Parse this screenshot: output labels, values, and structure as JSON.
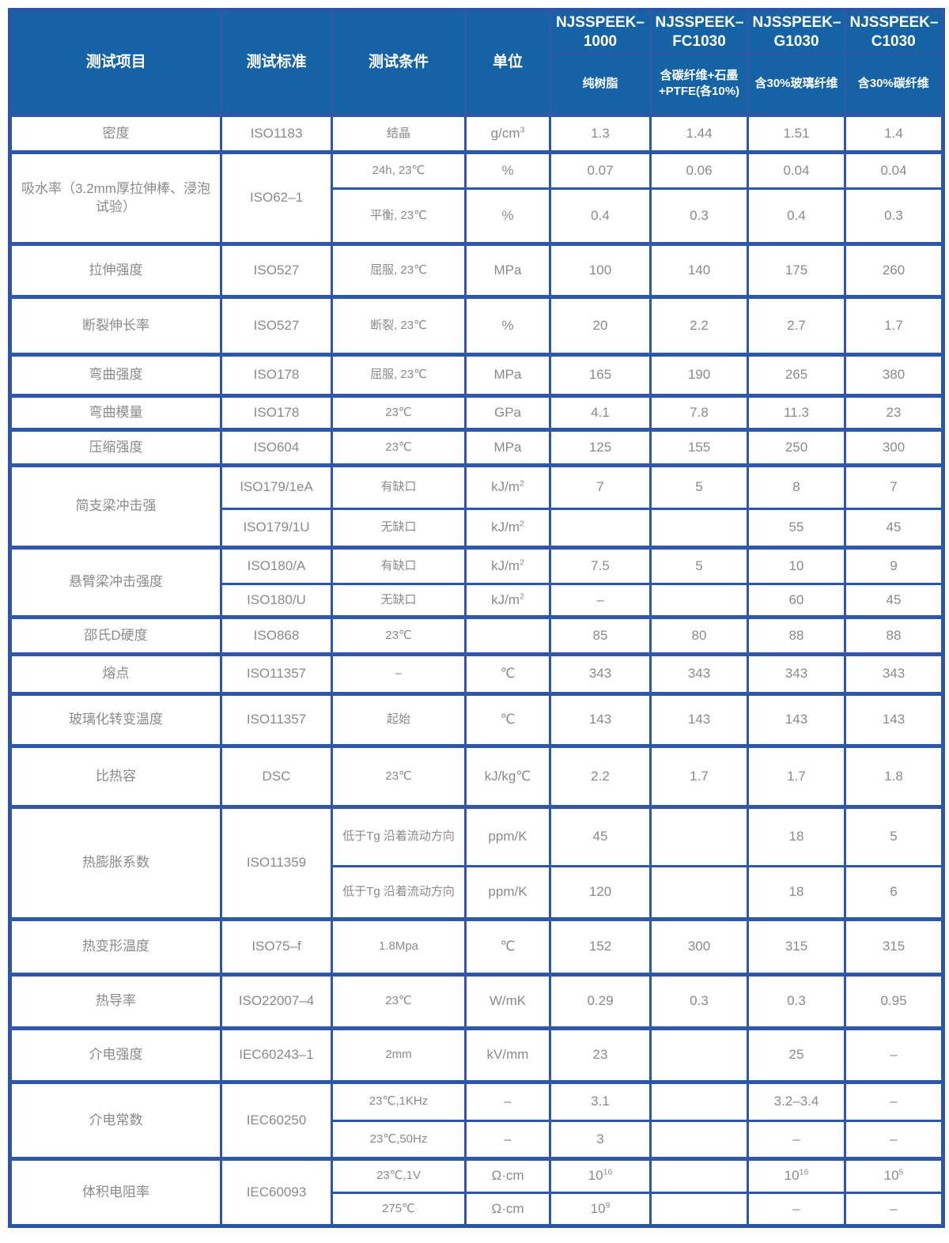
{
  "table": {
    "headers": [
      "测试项目",
      "测试标准",
      "测试条件",
      "单位"
    ],
    "products": [
      {
        "name": "NJSSPEEK–1000",
        "desc": "纯树脂"
      },
      {
        "name": "NJSSPEEK–FC1030",
        "desc": "含碳纤维+石墨+PTFE(各10%)"
      },
      {
        "name": "NJSSPEEK–G1030",
        "desc": "含30%玻璃纤维"
      },
      {
        "name": "NJSSPEEK–C1030",
        "desc": "含30%碳纤维"
      }
    ],
    "rows": [
      {
        "item": "密度",
        "std": "ISO1183",
        "cond": "结晶",
        "unit": "g/cm^3",
        "v": [
          "1.3",
          "1.44",
          "1.51",
          "1.4"
        ]
      },
      {
        "item": "吸水率（3.2mm厚拉伸棒、浸泡试验）",
        "std": "ISO62–1",
        "cond": "24h, 23℃",
        "unit": "%",
        "v": [
          "0.07",
          "0.06",
          "0.04",
          "0.04"
        ]
      },
      {
        "cond": "平衡, 23℃",
        "unit": "%",
        "v": [
          "0.4",
          "0.3",
          "0.4",
          "0.3"
        ]
      },
      {
        "item": "拉伸强度",
        "std": "ISO527",
        "cond": "屈服, 23℃",
        "unit": "MPa",
        "v": [
          "100",
          "140",
          "175",
          "260"
        ]
      },
      {
        "item": "断裂伸长率",
        "std": "ISO527",
        "cond": "断裂, 23℃",
        "unit": "%",
        "v": [
          "20",
          "2.2",
          "2.7",
          "1.7"
        ]
      },
      {
        "item": "弯曲强度",
        "std": "ISO178",
        "cond": "屈服, 23℃",
        "unit": "MPa",
        "v": [
          "165",
          "190",
          "265",
          "380"
        ]
      },
      {
        "item": "弯曲模量",
        "std": "ISO178",
        "cond": "23℃",
        "unit": "GPa",
        "v": [
          "4.1",
          "7.8",
          "11.3",
          "23"
        ]
      },
      {
        "item": "压缩强度",
        "std": "ISO604",
        "cond": "23℃",
        "unit": "MPa",
        "v": [
          "125",
          "155",
          "250",
          "300"
        ]
      },
      {
        "item": "简支梁冲击强",
        "std": "ISO179/1eA",
        "cond": "有缺口",
        "unit": "kJ/m^2",
        "v": [
          "7",
          "5",
          "8",
          "7"
        ]
      },
      {
        "std": "ISO179/1U",
        "cond": "无缺口",
        "unit": "kJ/m^2",
        "v": [
          "",
          "",
          "55",
          "45"
        ]
      },
      {
        "item": "悬臂梁冲击强度",
        "std": "ISO180/A",
        "cond": "有缺口",
        "unit": "kJ/m^2",
        "v": [
          "7.5",
          "5",
          "10",
          "9"
        ]
      },
      {
        "std": "ISO180/U",
        "cond": "无缺口",
        "unit": "kJ/m^2",
        "v": [
          "–",
          "",
          "60",
          "45"
        ]
      },
      {
        "item": "邵氏D硬度",
        "std": "ISO868",
        "cond": "23℃",
        "unit": "",
        "v": [
          "85",
          "80",
          "88",
          "88"
        ]
      },
      {
        "item": "熔点",
        "std": "ISO11357",
        "cond": "–",
        "unit": "℃",
        "v": [
          "343",
          "343",
          "343",
          "343"
        ]
      },
      {
        "item": "玻璃化转变温度",
        "std": "ISO11357",
        "cond": "起始",
        "unit": "℃",
        "v": [
          "143",
          "143",
          "143",
          "143"
        ]
      },
      {
        "item": "比热容",
        "std": "DSC",
        "cond": "23℃",
        "unit": "kJ/kg℃",
        "v": [
          "2.2",
          "1.7",
          "1.7",
          "1.8"
        ]
      },
      {
        "item": "热膨胀系数",
        "std": "ISO11359",
        "cond": "低于Tg 沿着流动方向",
        "unit": "ppm/K",
        "v": [
          "45",
          "",
          "18",
          "5"
        ]
      },
      {
        "cond": "低于Tg 沿着流动方向",
        "unit": "ppm/K",
        "v": [
          "120",
          "",
          "18",
          "6"
        ]
      },
      {
        "item": "热变形温度",
        "std": "ISO75–f",
        "cond": "1.8Mpa",
        "unit": "℃",
        "v": [
          "152",
          "300",
          "315",
          "315"
        ]
      },
      {
        "item": "热导率",
        "std": "ISO22007–4",
        "cond": "23℃",
        "unit": "W/mK",
        "v": [
          "0.29",
          "0.3",
          "0.3",
          "0.95"
        ]
      },
      {
        "item": "介电强度",
        "std": "IEC60243–1",
        "cond": "2mm",
        "unit": "kV/mm",
        "v": [
          "23",
          "",
          "25",
          "–"
        ]
      },
      {
        "item": "介电常数",
        "std": "IEC60250",
        "cond": "23℃,1KHz",
        "unit": "–",
        "v": [
          "3.1",
          "",
          "3.2–3.4",
          "–"
        ]
      },
      {
        "cond": "23℃,50Hz",
        "unit": "–",
        "v": [
          "3",
          "",
          "–",
          "–"
        ]
      },
      {
        "item": "体积电阻率",
        "std": "IEC60093",
        "cond": "23℃,1V",
        "unit": "Ω·cm",
        "v": [
          "10^16",
          "",
          "10^16",
          "10^5"
        ]
      },
      {
        "cond": "275℃",
        "unit": "Ω·cm",
        "v": [
          "10^9",
          "",
          "–",
          "–"
        ]
      }
    ]
  }
}
